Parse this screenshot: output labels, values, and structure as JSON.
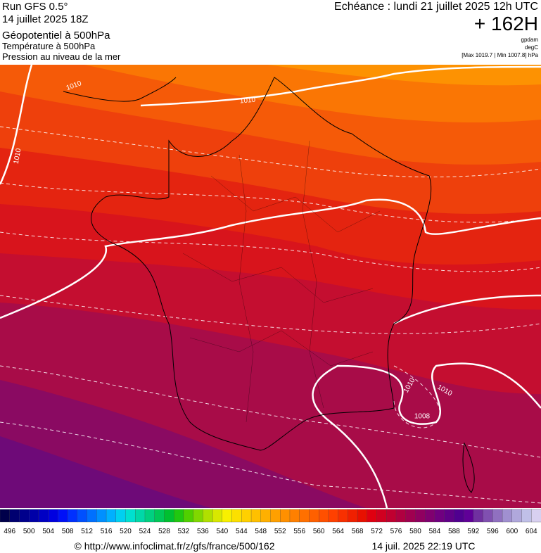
{
  "header": {
    "run": "Run GFS 0.5°",
    "date": "14 juillet 2025 18Z",
    "fields": [
      "Géopotentiel à 500hPa",
      "Température à 500hPa",
      "Pression au niveau de la mer"
    ],
    "echeance": "Echéance : lundi 21 juillet 2025 12h UTC",
    "lead": "+ 162H",
    "units": [
      "gpdam",
      "degC"
    ],
    "range": "[Max 1019.7 | Min 1007.8] hPa"
  },
  "contour_labels": [
    1010,
    1010,
    1010,
    1010,
    1010,
    1008
  ],
  "colorbar": {
    "ticks": [
      496,
      500,
      504,
      508,
      512,
      516,
      520,
      524,
      528,
      532,
      536,
      540,
      544,
      548,
      552,
      556,
      560,
      564,
      568,
      572,
      576,
      580,
      584,
      588,
      592,
      596,
      600,
      604
    ],
    "colors": [
      "#00004a",
      "#000070",
      "#00008c",
      "#0000a8",
      "#0000c4",
      "#0000e0",
      "#0010f8",
      "#0030ff",
      "#0050ff",
      "#0070ff",
      "#0090ff",
      "#00b0ff",
      "#00d0f0",
      "#00e0d0",
      "#00d8a8",
      "#00d080",
      "#00c858",
      "#00c030",
      "#20c810",
      "#50d000",
      "#80d800",
      "#b0e000",
      "#d8e800",
      "#f8f000",
      "#fce000",
      "#ffd000",
      "#ffc000",
      "#ffb000",
      "#ffa000",
      "#ff9000",
      "#ff8000",
      "#ff7000",
      "#ff6000",
      "#ff5000",
      "#ff4000",
      "#f83000",
      "#f02000",
      "#e81000",
      "#e00010",
      "#d00020",
      "#c00030",
      "#b00040",
      "#a00050",
      "#900060",
      "#800070",
      "#700080",
      "#600088",
      "#500090",
      "#600098",
      "#7030a0",
      "#8050b0",
      "#9070c0",
      "#a090d0",
      "#b0a8dc",
      "#c0c0e8",
      "#d8d0f0"
    ]
  },
  "footer": {
    "url": "© http://www.infoclimat.fr/z/gfs/france/500/162",
    "timestamp": "14 juil. 2025 22:19 UTC"
  }
}
